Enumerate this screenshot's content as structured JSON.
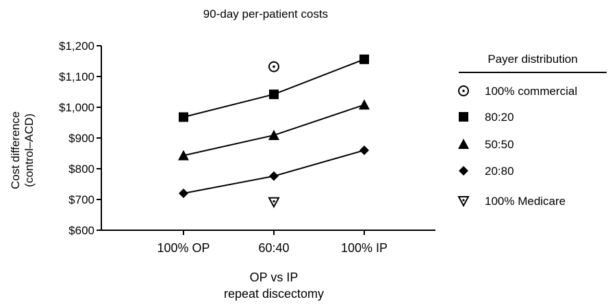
{
  "chart_data": {
    "type": "line",
    "title": "90-day per-patient costs",
    "ylabel": [
      "Cost difference",
      "(control–ACD)"
    ],
    "xlabel": [
      "OP vs IP",
      "repeat discectomy"
    ],
    "categories": [
      "100% OP",
      "60:40",
      "100% IP"
    ],
    "ylim": [
      600,
      1200
    ],
    "yticks": [
      600,
      700,
      800,
      900,
      1000,
      1100,
      1200
    ],
    "ytick_labels": [
      "$600",
      "$700",
      "$800",
      "$900",
      "$1,000",
      "$1,100",
      "$1,200"
    ],
    "legend_title": "Payer distribution",
    "legend_position": "right",
    "series": [
      {
        "name": "100% commercial",
        "marker": "circle-dot-open",
        "line": false,
        "values": [
          null,
          1132,
          null
        ]
      },
      {
        "name": "80:20",
        "marker": "square",
        "line": true,
        "values": [
          968,
          1042,
          1156
        ]
      },
      {
        "name": "50:50",
        "marker": "triangle-up",
        "line": true,
        "values": [
          843,
          909,
          1008
        ]
      },
      {
        "name": "20:80",
        "marker": "diamond",
        "line": true,
        "values": [
          720,
          776,
          860
        ]
      },
      {
        "name": "100% Medicare",
        "marker": "triangle-down-dot-open",
        "line": false,
        "values": [
          null,
          692,
          null
        ]
      }
    ]
  }
}
